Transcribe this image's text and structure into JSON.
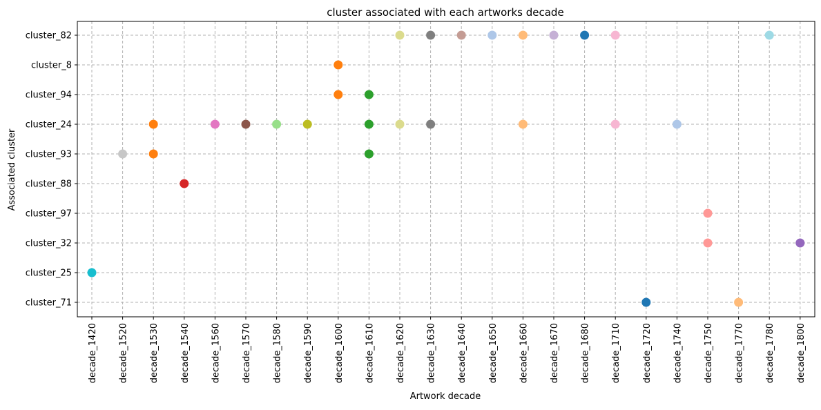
{
  "chart_data": {
    "type": "scatter",
    "title": "cluster associated with each artworks decade",
    "xlabel": "Artwork decade",
    "ylabel": "Associated cluster",
    "grid": true,
    "legend": "none",
    "x_categories": [
      "decade_1420",
      "decade_1520",
      "decade_1530",
      "decade_1540",
      "decade_1560",
      "decade_1570",
      "decade_1580",
      "decade_1590",
      "decade_1600",
      "decade_1610",
      "decade_1620",
      "decade_1630",
      "decade_1640",
      "decade_1650",
      "decade_1660",
      "decade_1670",
      "decade_1680",
      "decade_1710",
      "decade_1720",
      "decade_1740",
      "decade_1750",
      "decade_1770",
      "decade_1780",
      "decade_1800"
    ],
    "y_categories": [
      "cluster_71",
      "cluster_25",
      "cluster_32",
      "cluster_97",
      "cluster_88",
      "cluster_93",
      "cluster_24",
      "cluster_94",
      "cluster_8",
      "cluster_82"
    ],
    "points": [
      {
        "x": "decade_1420",
        "y": "cluster_25",
        "color": "#17becf"
      },
      {
        "x": "decade_1520",
        "y": "cluster_93",
        "color": "#c7c7c7"
      },
      {
        "x": "decade_1530",
        "y": "cluster_24",
        "color": "#ff7f0e"
      },
      {
        "x": "decade_1530",
        "y": "cluster_93",
        "color": "#ff7f0e"
      },
      {
        "x": "decade_1540",
        "y": "cluster_88",
        "color": "#d62728"
      },
      {
        "x": "decade_1560",
        "y": "cluster_24",
        "color": "#e377c2"
      },
      {
        "x": "decade_1570",
        "y": "cluster_24",
        "color": "#8c564b"
      },
      {
        "x": "decade_1580",
        "y": "cluster_24",
        "color": "#98df8a"
      },
      {
        "x": "decade_1590",
        "y": "cluster_24",
        "color": "#bcbd22"
      },
      {
        "x": "decade_1600",
        "y": "cluster_8",
        "color": "#ff7f0e"
      },
      {
        "x": "decade_1600",
        "y": "cluster_94",
        "color": "#ff7f0e"
      },
      {
        "x": "decade_1610",
        "y": "cluster_94",
        "color": "#2ca02c"
      },
      {
        "x": "decade_1610",
        "y": "cluster_24",
        "color": "#2ca02c"
      },
      {
        "x": "decade_1610",
        "y": "cluster_93",
        "color": "#2ca02c"
      },
      {
        "x": "decade_1620",
        "y": "cluster_82",
        "color": "#dbdb8d"
      },
      {
        "x": "decade_1620",
        "y": "cluster_24",
        "color": "#dbdb8d"
      },
      {
        "x": "decade_1630",
        "y": "cluster_82",
        "color": "#7f7f7f"
      },
      {
        "x": "decade_1630",
        "y": "cluster_24",
        "color": "#7f7f7f"
      },
      {
        "x": "decade_1640",
        "y": "cluster_82",
        "color": "#c49c94"
      },
      {
        "x": "decade_1650",
        "y": "cluster_82",
        "color": "#aec7e8"
      },
      {
        "x": "decade_1660",
        "y": "cluster_82",
        "color": "#ffbb78"
      },
      {
        "x": "decade_1660",
        "y": "cluster_24",
        "color": "#ffbb78"
      },
      {
        "x": "decade_1670",
        "y": "cluster_82",
        "color": "#c5b0d5"
      },
      {
        "x": "decade_1680",
        "y": "cluster_82",
        "color": "#1f77b4"
      },
      {
        "x": "decade_1710",
        "y": "cluster_82",
        "color": "#f7b6d2"
      },
      {
        "x": "decade_1710",
        "y": "cluster_24",
        "color": "#f7b6d2"
      },
      {
        "x": "decade_1720",
        "y": "cluster_71",
        "color": "#1f77b4"
      },
      {
        "x": "decade_1740",
        "y": "cluster_24",
        "color": "#aec7e8"
      },
      {
        "x": "decade_1750",
        "y": "cluster_97",
        "color": "#ff9896"
      },
      {
        "x": "decade_1750",
        "y": "cluster_32",
        "color": "#ff9896"
      },
      {
        "x": "decade_1770",
        "y": "cluster_71",
        "color": "#ffbb78"
      },
      {
        "x": "decade_1780",
        "y": "cluster_82",
        "color": "#9edae5"
      },
      {
        "x": "decade_1800",
        "y": "cluster_32",
        "color": "#9467bd"
      }
    ]
  }
}
